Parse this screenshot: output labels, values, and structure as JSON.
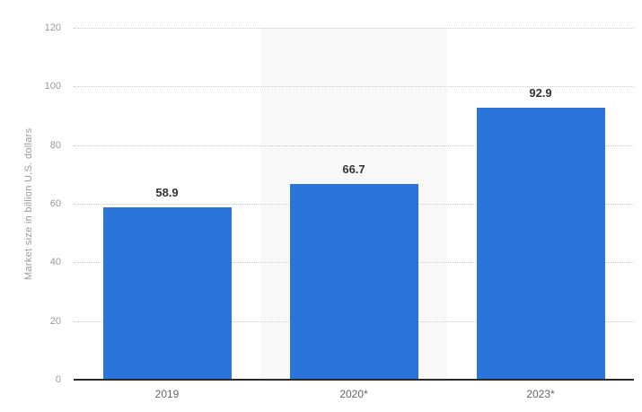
{
  "chart_data": {
    "type": "bar",
    "categories": [
      "2019",
      "2020*",
      "2023*"
    ],
    "values": [
      58.9,
      66.7,
      92.9
    ],
    "value_labels": [
      "58.9",
      "66.7",
      "92.9"
    ],
    "title": "",
    "xlabel": "",
    "ylabel": "Market size in billion U.S. dollars",
    "ylim": [
      0,
      120
    ],
    "yticks": [
      0,
      20,
      40,
      60,
      80,
      100,
      120
    ],
    "grid": "horizontal-dotted",
    "legend": "none",
    "highlighted_category_index": 1,
    "colors": {
      "bar": "#2b74d9",
      "highlight_band": "#f8f8f8",
      "gridline": "#cccccc",
      "axis_line": "#2b2b2b",
      "tick_label": "#999999",
      "category_label": "#666666",
      "value_label": "#333333",
      "background": "#ffffff"
    }
  }
}
